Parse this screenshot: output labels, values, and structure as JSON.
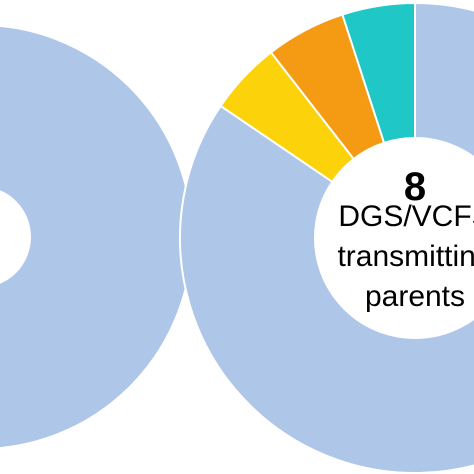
{
  "chart_data": [
    {
      "type": "donut",
      "segments": [
        {
          "value": 100,
          "color": "#aec7e8"
        }
      ]
    },
    {
      "type": "donut",
      "center_label": {
        "count": "8",
        "lines": [
          "DGS/VCFS",
          "transmitting",
          "parents"
        ]
      },
      "segments": [
        {
          "value": 84.5,
          "color": "#aec7e8"
        },
        {
          "value": 5.0,
          "color": "#fcd20b"
        },
        {
          "value": 5.5,
          "color": "#f59b13"
        },
        {
          "value": 5.0,
          "color": "#20c7c7"
        }
      ]
    }
  ]
}
